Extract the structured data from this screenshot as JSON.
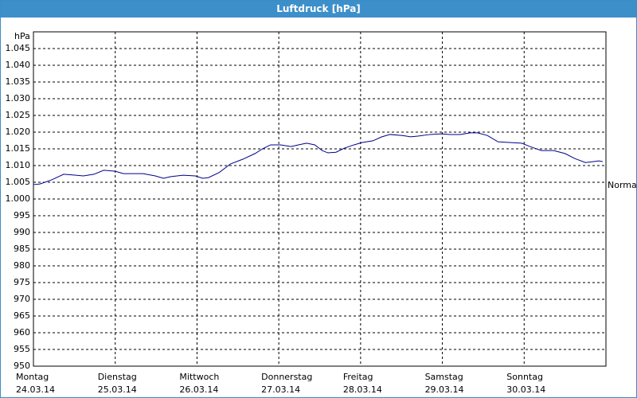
{
  "chart_data": {
    "type": "line",
    "title": "Luftdruck [hPa]",
    "y_unit": "hPa",
    "x": [
      0,
      0.08,
      0.22,
      0.37,
      0.52,
      0.61,
      0.74,
      0.86,
      1.0,
      1.1,
      1.34,
      1.49,
      1.59,
      1.68,
      1.83,
      1.98,
      2.07,
      2.14,
      2.27,
      2.41,
      2.56,
      2.71,
      2.8,
      2.9,
      3.02,
      3.15,
      3.24,
      3.34,
      3.44,
      3.53,
      3.6,
      3.7,
      3.8,
      3.92,
      4.02,
      4.15,
      4.26,
      4.36,
      4.51,
      4.61,
      4.7,
      4.85,
      4.99,
      5.09,
      5.22,
      5.34,
      5.43,
      5.55,
      5.68,
      5.82,
      5.97,
      6.07,
      6.21,
      6.36,
      6.5,
      6.62,
      6.75,
      6.85,
      6.91,
      6.96
    ],
    "series": [
      {
        "color": "#00008b",
        "values": [
          1004.3,
          1004.5,
          1005.7,
          1007.4,
          1007.1,
          1006.9,
          1007.4,
          1008.6,
          1008.3,
          1007.6,
          1007.6,
          1006.9,
          1006.2,
          1006.7,
          1007.1,
          1006.9,
          1006.2,
          1006.4,
          1007.9,
          1010.5,
          1011.9,
          1013.6,
          1015,
          1016.2,
          1016.2,
          1015.7,
          1016.2,
          1016.7,
          1016.2,
          1014.5,
          1013.8,
          1014,
          1015.2,
          1016.2,
          1016.9,
          1017.4,
          1018.6,
          1019.3,
          1019,
          1018.6,
          1018.8,
          1019.3,
          1019.5,
          1019.3,
          1019.3,
          1019.8,
          1019.8,
          1019,
          1017.1,
          1016.9,
          1016.7,
          1015.7,
          1014.5,
          1014.5,
          1013.6,
          1012.1,
          1010.9,
          1011.2,
          1011.4,
          1011.2
        ]
      }
    ],
    "xlim": [
      0,
      7
    ],
    "xticks": [
      {
        "value": 0,
        "label": [
          "Montag",
          "24.03.14"
        ]
      },
      {
        "value": 1,
        "label": [
          "Dienstag",
          "25.03.14"
        ]
      },
      {
        "value": 2,
        "label": [
          "Mittwoch",
          "26.03.14"
        ]
      },
      {
        "value": 3,
        "label": [
          "Donnerstag",
          "27.03.14"
        ]
      },
      {
        "value": 4,
        "label": [
          "Freitag",
          "28.03.14"
        ]
      },
      {
        "value": 5,
        "label": [
          "Samstag",
          "29.03.14"
        ]
      },
      {
        "value": 6,
        "label": [
          "Sonntag",
          "30.03.14"
        ]
      }
    ],
    "ylim": [
      950,
      1050
    ],
    "yticks": [
      950,
      955,
      960,
      965,
      970,
      975,
      980,
      985,
      990,
      995,
      {
        "value": 1000,
        "label": "1.000"
      },
      {
        "value": 1005,
        "label": "1.005"
      },
      {
        "value": 1010,
        "label": "1.010"
      },
      {
        "value": 1015,
        "label": "1.015"
      },
      {
        "value": 1020,
        "label": "1.020"
      },
      {
        "value": 1025,
        "label": "1.025"
      },
      {
        "value": 1030,
        "label": "1.030"
      },
      {
        "value": 1035,
        "label": "1.035"
      },
      {
        "value": 1040,
        "label": "1.040"
      },
      {
        "value": 1045,
        "label": "1.045"
      }
    ],
    "grid": true,
    "annotation": {
      "text": "Normal",
      "value": 1004
    }
  }
}
